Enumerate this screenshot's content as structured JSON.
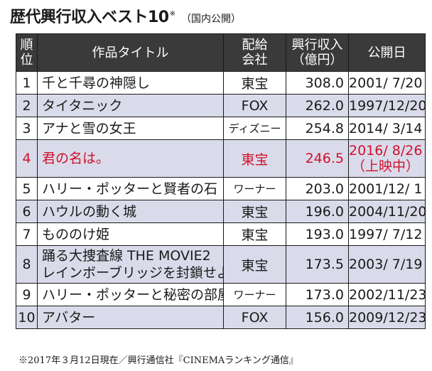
{
  "header": {
    "title": "歴代興行収入ベスト10",
    "title_mark": "※",
    "subtitle": "（国内公開）"
  },
  "table": {
    "columns": {
      "rank": [
        "順",
        "位"
      ],
      "title": "作品タイトル",
      "distributor": [
        "配給",
        "会社"
      ],
      "revenue": [
        "興行収入",
        "（億円）"
      ],
      "release": "公開日"
    },
    "rows": [
      {
        "rank": "1",
        "title": [
          "千と千尋の神隠し"
        ],
        "distributor": "東宝",
        "revenue": "308.0",
        "release": [
          "2001/  7/20"
        ]
      },
      {
        "rank": "2",
        "title": [
          "タイタニック"
        ],
        "distributor": "FOX",
        "revenue": "262.0",
        "release": [
          "1997/12/20"
        ]
      },
      {
        "rank": "3",
        "title": [
          "アナと雪の女王"
        ],
        "distributor": "ディズニー",
        "revenue": "254.8",
        "release": [
          "2014/  3/14"
        ]
      },
      {
        "rank": "4",
        "title": [
          "君の名は。"
        ],
        "distributor": "東宝",
        "revenue": "246.5",
        "release": [
          "2016/  8/26",
          "（上映中）"
        ]
      },
      {
        "rank": "5",
        "title": [
          "ハリー・ポッターと賢者の石"
        ],
        "distributor": "ワーナー",
        "revenue": "203.0",
        "release": [
          "2001/12/  1"
        ]
      },
      {
        "rank": "6",
        "title": [
          "ハウルの動く城"
        ],
        "distributor": "東宝",
        "revenue": "196.0",
        "release": [
          "2004/11/20"
        ]
      },
      {
        "rank": "7",
        "title": [
          "もののけ姫"
        ],
        "distributor": "東宝",
        "revenue": "193.0",
        "release": [
          "1997/  7/12"
        ]
      },
      {
        "rank": "8",
        "title": [
          "踊る大捜査線 THE MOVIE2",
          "レインボーブリッジを封鎖せよ！"
        ],
        "distributor": "東宝",
        "revenue": "173.5",
        "release": [
          "2003/  7/19"
        ]
      },
      {
        "rank": "9",
        "title": [
          "ハリー・ポッターと秘密の部屋"
        ],
        "distributor": "ワーナー",
        "revenue": "173.0",
        "release": [
          "2002/11/23"
        ]
      },
      {
        "rank": "10",
        "title": [
          "アバター"
        ],
        "distributor": "FOX",
        "revenue": "156.0",
        "release": [
          "2009/12/23"
        ]
      }
    ]
  },
  "note": "※2017年３月12日現在／興行通信社『CINEMAランキング通信』",
  "colors": {
    "header_bg": "#3a3a3a",
    "alt_row_bg": "#dadbea",
    "highlight_text": "#d0102c"
  }
}
